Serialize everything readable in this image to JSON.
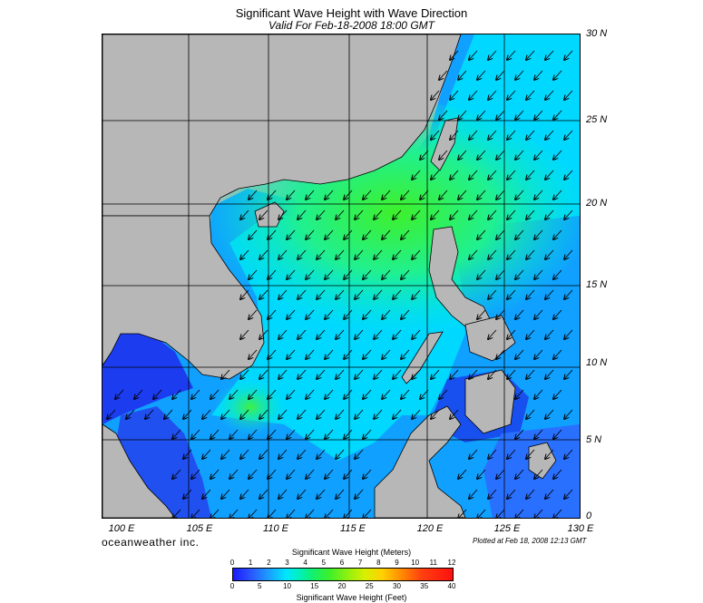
{
  "title": "Significant Wave Height with Wave Direction",
  "subtitle": "Valid For Feb-18-2008 18:00 GMT",
  "lat_labels": [
    "30 N",
    "25 N",
    "20 N",
    "15 N",
    "10 N",
    "5 N",
    "0"
  ],
  "lon_labels": [
    "100 E",
    "105 E",
    "110 E",
    "115 E",
    "120 E",
    "125 E",
    "130 E"
  ],
  "brand": "oceanweather inc.",
  "plotted": "Plotted at Feb 18, 2008 12:13 GMT",
  "legend": {
    "meters_title": "Significant Wave Height (Meters)",
    "meters_ticks": [
      "0",
      "1",
      "2",
      "3",
      "4",
      "5",
      "6",
      "7",
      "8",
      "9",
      "10",
      "11",
      "12"
    ],
    "feet_title": "Significant Wave Height (Feet)",
    "feet_ticks": [
      "0",
      "5",
      "10",
      "15",
      "20",
      "25",
      "30",
      "35",
      "40"
    ]
  },
  "colors": {
    "land": "#b7b7b7",
    "low": "#1a1aff",
    "mid": "#00e5ff",
    "high": "#3ef02a",
    "arrow": "#000000"
  }
}
